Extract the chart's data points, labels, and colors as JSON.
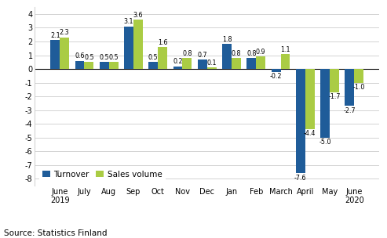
{
  "categories": [
    "June\n2019",
    "July",
    "Aug",
    "Sep",
    "Oct",
    "Nov",
    "Dec",
    "Jan",
    "Feb",
    "March",
    "April",
    "May",
    "June\n2020"
  ],
  "turnover": [
    2.1,
    0.6,
    0.5,
    3.1,
    0.5,
    0.2,
    0.7,
    1.8,
    0.8,
    -0.2,
    -7.6,
    -5.0,
    -2.7
  ],
  "sales_volume": [
    2.3,
    0.5,
    0.5,
    3.6,
    1.6,
    0.8,
    0.1,
    0.8,
    0.9,
    1.1,
    -4.4,
    -1.7,
    -1.0
  ],
  "turnover_color": "#1F5C99",
  "sales_volume_color": "#AACC44",
  "ylim": [
    -8.5,
    4.5
  ],
  "yticks": [
    -8,
    -7,
    -6,
    -5,
    -4,
    -3,
    -2,
    -1,
    0,
    1,
    2,
    3,
    4
  ],
  "legend_labels": [
    "Turnover",
    "Sales volume"
  ],
  "source_text": "Source: Statistics Finland",
  "bar_width": 0.38,
  "label_fontsize": 5.8,
  "tick_fontsize": 7.0,
  "legend_fontsize": 7.5,
  "source_fontsize": 7.5
}
